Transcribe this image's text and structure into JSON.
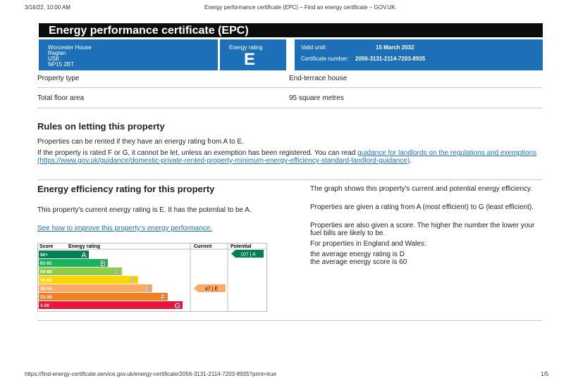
{
  "browser_header": {
    "timestamp": "3/16/22, 10:00 AM",
    "page_title": "Energy performance certificate (EPC) – Find an energy certificate – GOV.UK"
  },
  "certificate": {
    "title": "Energy performance certificate (EPC)",
    "address": [
      "Worcester House",
      "Raglan",
      "USK",
      "NP15 2BT"
    ],
    "rating_label": "Energy rating",
    "rating": "E",
    "valid_until_label": "Valid until:",
    "valid_until": "15 March 2032",
    "certificate_number_label": "Certificate number:",
    "certificate_number": "2056-3131-2114-7203-8935"
  },
  "summary": [
    {
      "label": "Property type",
      "value": "End-terrace house"
    },
    {
      "label": "Total floor area",
      "value": "95 square metres"
    }
  ],
  "letting": {
    "heading": "Rules on letting this property",
    "paragraph_1": "Properties can be rented if they have an energy rating from A to E.",
    "paragraph_2_text": "If the property is rated F or G, it cannot be let, unless an exemption has been registered. You can read ",
    "paragraph_2_link": "guidance for landlords on the regulations and exemptions (https://www.gov.uk/guidance/domestic-private-rented-property-minimum-energy-efficiency-standard-landlord-guidance)",
    "paragraph_2_end": "."
  },
  "efficiency": {
    "heading": "Energy efficiency rating for this property",
    "current_text": "This property's current energy rating is E. It has the potential to be A.",
    "improve_link": "See how to improve this property's energy performance.",
    "chart": {
      "headers": [
        "Score",
        "Energy rating",
        "Current",
        "Potential"
      ],
      "bands": [
        {
          "score": "92+",
          "letter": "A"
        },
        {
          "score": "81-91",
          "letter": "B"
        },
        {
          "score": "69-80",
          "letter": "C"
        },
        {
          "score": "55-68",
          "letter": "D"
        },
        {
          "score": "39-54",
          "letter": "E"
        },
        {
          "score": "21-38",
          "letter": "F"
        },
        {
          "score": "1-20",
          "letter": "G"
        }
      ],
      "current": "47 | E",
      "potential": "107 | A"
    },
    "notes": [
      "The graph shows this property's current and potential energy efficiency.",
      "Properties are given a rating from A (most efficient) to G (least efficient).",
      "Properties are also given a score. The higher the number the lower your fuel bills are likely to be.",
      "For properties in England and Wales:",
      "the average energy rating is D",
      "the average energy score is 60"
    ]
  },
  "footer": {
    "url": "https://find-energy-certificate.service.gov.uk/energy-certificate/2056-3131-2114-7203-8935?print=true",
    "page": "1/5"
  }
}
